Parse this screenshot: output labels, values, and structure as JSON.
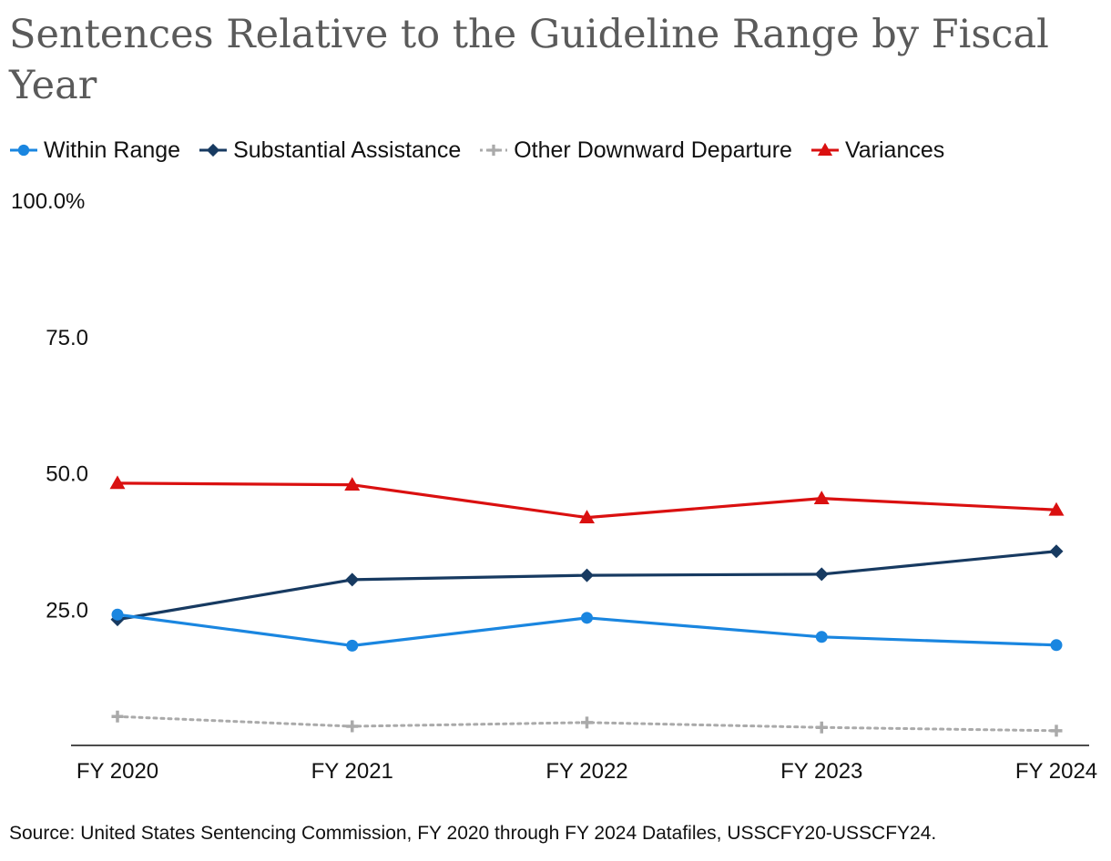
{
  "chart_data": {
    "type": "line",
    "title": "Sentences Relative to the Guideline Range by Fiscal Year",
    "xlabel": "",
    "ylabel": "",
    "categories": [
      "FY 2020",
      "FY 2021",
      "FY 2022",
      "FY 2023",
      "FY 2024"
    ],
    "ylim": [
      0,
      100
    ],
    "yticks": [
      {
        "value": 100,
        "label": "100.0%"
      },
      {
        "value": 75,
        "label": "75.0"
      },
      {
        "value": 50,
        "label": "50.0"
      },
      {
        "value": 25,
        "label": "25.0"
      }
    ],
    "grid": false,
    "legend_position": "top",
    "series": [
      {
        "name": "Within Range",
        "values": [
          24.0,
          18.3,
          23.4,
          19.9,
          18.4
        ],
        "color": "#1A86E0",
        "marker": "circle",
        "dash": "solid"
      },
      {
        "name": "Substantial Assistance",
        "values": [
          23.1,
          30.4,
          31.2,
          31.4,
          35.6
        ],
        "color": "#173A61",
        "marker": "diamond",
        "dash": "solid"
      },
      {
        "name": "Other Downward Departure",
        "values": [
          5.3,
          3.5,
          4.2,
          3.3,
          2.7
        ],
        "color": "#AAAAAA",
        "marker": "plus",
        "dash": "dotted"
      },
      {
        "name": "Variances",
        "values": [
          48.1,
          47.8,
          41.8,
          45.3,
          43.2
        ],
        "color": "#DA1010",
        "marker": "triangle",
        "dash": "solid"
      }
    ]
  },
  "source": "Source: United States Sentencing Commission, FY 2020 through FY 2024 Datafiles, USSCFY20-USSCFY24."
}
